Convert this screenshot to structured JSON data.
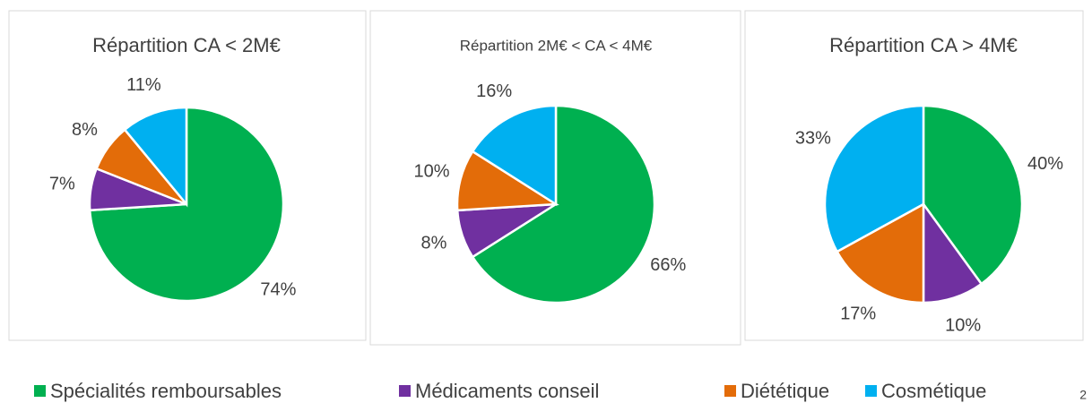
{
  "chart_data": [
    {
      "type": "pie",
      "title": "Répartition CA < 2M€",
      "values": [
        74,
        7,
        8,
        11
      ],
      "value_labels": [
        "74%",
        "7%",
        "8%",
        "11%"
      ]
    },
    {
      "type": "pie",
      "title": "Répartition 2M€ < CA < 4M€",
      "values": [
        66,
        8,
        10,
        16
      ],
      "value_labels": [
        "66%",
        "8%",
        "10%",
        "16%"
      ]
    },
    {
      "type": "pie",
      "title": "Répartition CA > 4M€",
      "values": [
        40,
        10,
        17,
        33
      ],
      "value_labels": [
        "40%",
        "10%",
        "17%",
        "33%"
      ]
    }
  ],
  "legend": {
    "items": [
      "Spécialités remboursables",
      "Médicaments conseil",
      "Diététique",
      "Cosmétique"
    ],
    "colors": [
      "#00b050",
      "#7030a0",
      "#e36c09",
      "#00b0f0"
    ]
  },
  "page_number": "2"
}
